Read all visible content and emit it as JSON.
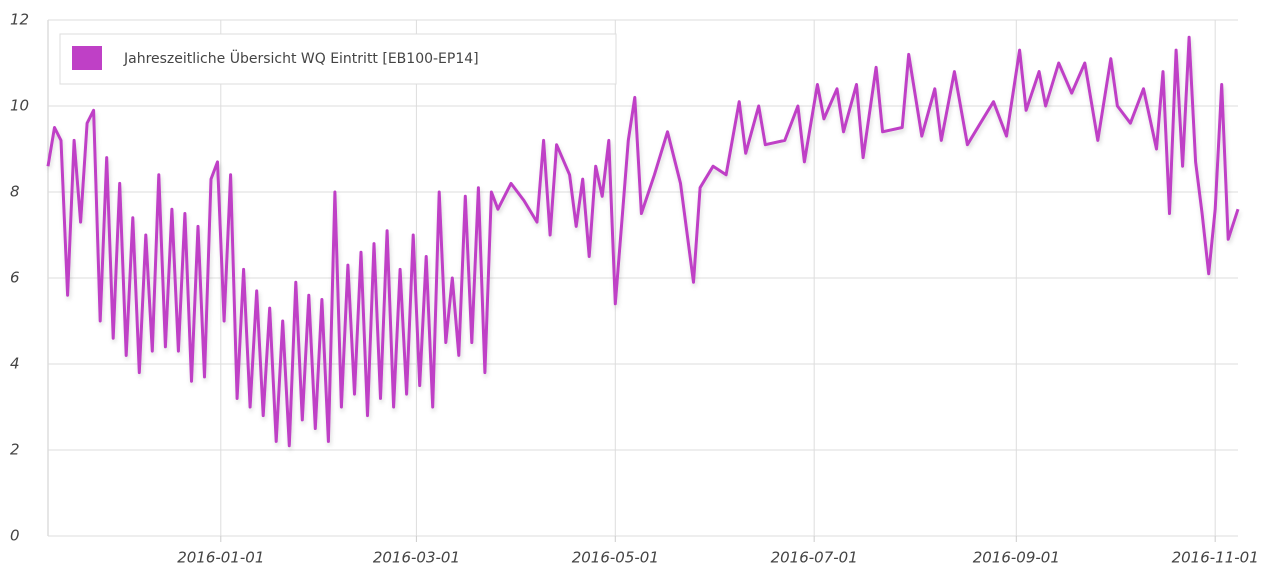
{
  "chart_data": {
    "type": "line",
    "x": [
      "2015-11-09",
      "2015-11-11",
      "2015-11-13",
      "2015-11-15",
      "2015-11-17",
      "2015-11-19",
      "2015-11-21",
      "2015-11-23",
      "2015-11-25",
      "2015-11-27",
      "2015-11-29",
      "2015-12-01",
      "2015-12-03",
      "2015-12-05",
      "2015-12-07",
      "2015-12-09",
      "2015-12-11",
      "2015-12-13",
      "2015-12-15",
      "2015-12-17",
      "2015-12-19",
      "2015-12-21",
      "2015-12-23",
      "2015-12-25",
      "2015-12-27",
      "2015-12-29",
      "2015-12-31",
      "2016-01-02",
      "2016-01-04",
      "2016-01-06",
      "2016-01-08",
      "2016-01-10",
      "2016-01-12",
      "2016-01-14",
      "2016-01-16",
      "2016-01-18",
      "2016-01-20",
      "2016-01-22",
      "2016-01-24",
      "2016-01-26",
      "2016-01-28",
      "2016-01-30",
      "2016-02-01",
      "2016-02-03",
      "2016-02-05",
      "2016-02-07",
      "2016-02-09",
      "2016-02-11",
      "2016-02-13",
      "2016-02-15",
      "2016-02-17",
      "2016-02-19",
      "2016-02-21",
      "2016-02-23",
      "2016-02-25",
      "2016-02-27",
      "2016-02-29",
      "2016-03-02",
      "2016-03-04",
      "2016-03-06",
      "2016-03-08",
      "2016-03-10",
      "2016-03-12",
      "2016-03-14",
      "2016-03-16",
      "2016-03-18",
      "2016-03-20",
      "2016-03-22",
      "2016-03-24",
      "2016-03-26",
      "2016-03-30",
      "2016-04-03",
      "2016-04-07",
      "2016-04-09",
      "2016-04-11",
      "2016-04-13",
      "2016-04-17",
      "2016-04-19",
      "2016-04-21",
      "2016-04-23",
      "2016-04-25",
      "2016-04-27",
      "2016-04-29",
      "2016-05-01",
      "2016-05-03",
      "2016-05-05",
      "2016-05-07",
      "2016-05-09",
      "2016-05-13",
      "2016-05-17",
      "2016-05-21",
      "2016-05-25",
      "2016-05-27",
      "2016-05-31",
      "2016-06-04",
      "2016-06-08",
      "2016-06-10",
      "2016-06-14",
      "2016-06-16",
      "2016-06-22",
      "2016-06-26",
      "2016-06-28",
      "2016-07-02",
      "2016-07-04",
      "2016-07-08",
      "2016-07-10",
      "2016-07-14",
      "2016-07-16",
      "2016-07-20",
      "2016-07-22",
      "2016-07-28",
      "2016-07-30",
      "2016-08-03",
      "2016-08-07",
      "2016-08-09",
      "2016-08-13",
      "2016-08-17",
      "2016-08-21",
      "2016-08-25",
      "2016-08-29",
      "2016-09-02",
      "2016-09-04",
      "2016-09-08",
      "2016-09-10",
      "2016-09-14",
      "2016-09-18",
      "2016-09-22",
      "2016-09-26",
      "2016-09-30",
      "2016-10-02",
      "2016-10-06",
      "2016-10-10",
      "2016-10-14",
      "2016-10-16",
      "2016-10-18",
      "2016-10-20",
      "2016-10-22",
      "2016-10-24",
      "2016-10-26",
      "2016-10-28",
      "2016-10-30",
      "2016-11-01",
      "2016-11-03",
      "2016-11-05",
      "2016-11-08"
    ],
    "series": [
      {
        "name": "Jahreszeitliche Übersicht WQ Eintritt [EB100-EP14]",
        "color": "#bf40c6",
        "values": [
          8.6,
          9.5,
          9.2,
          5.6,
          9.2,
          7.3,
          9.6,
          9.9,
          5.0,
          8.8,
          4.6,
          8.2,
          4.2,
          7.4,
          3.8,
          7.0,
          4.3,
          8.4,
          4.4,
          7.6,
          4.3,
          7.5,
          3.6,
          7.2,
          3.7,
          8.3,
          8.7,
          5.0,
          8.4,
          3.2,
          6.2,
          3.0,
          5.7,
          2.8,
          5.3,
          2.2,
          5.0,
          2.1,
          5.9,
          2.7,
          5.6,
          2.5,
          5.5,
          2.2,
          8.0,
          3.0,
          6.3,
          3.3,
          6.6,
          2.8,
          6.8,
          3.2,
          7.1,
          3.0,
          6.2,
          3.3,
          7.0,
          3.5,
          6.5,
          3.0,
          8.0,
          4.5,
          6.0,
          4.2,
          7.9,
          4.5,
          8.1,
          3.8,
          8.0,
          7.6,
          8.2,
          7.8,
          7.3,
          9.2,
          7.0,
          9.1,
          8.4,
          7.2,
          8.3,
          6.5,
          8.6,
          7.9,
          9.2,
          5.4,
          7.3,
          9.2,
          10.2,
          7.5,
          8.4,
          9.4,
          8.2,
          5.9,
          8.1,
          8.6,
          8.4,
          10.1,
          8.9,
          10.0,
          9.1,
          9.2,
          10.0,
          8.7,
          10.5,
          9.7,
          10.4,
          9.4,
          10.5,
          8.8,
          10.9,
          9.4,
          9.5,
          11.2,
          9.3,
          10.4,
          9.2,
          10.8,
          9.1,
          9.6,
          10.1,
          9.3,
          11.3,
          9.9,
          10.8,
          10.0,
          11.0,
          10.3,
          11.0,
          9.2,
          11.1,
          10.0,
          9.6,
          10.4,
          9.0,
          10.8,
          7.5,
          11.3,
          8.6,
          11.6,
          8.7,
          7.5,
          6.1,
          7.6,
          10.5,
          6.9,
          7.6
        ]
      }
    ],
    "xlim": [
      "2015-11-09",
      "2016-11-08"
    ],
    "xticks": [
      "2016-01-01",
      "2016-03-01",
      "2016-05-01",
      "2016-07-01",
      "2016-09-01",
      "2016-11-01"
    ],
    "ylim": [
      0,
      12
    ],
    "yticks": [
      0,
      2,
      4,
      6,
      8,
      10,
      12
    ],
    "grid": true,
    "legend": "top-left"
  }
}
